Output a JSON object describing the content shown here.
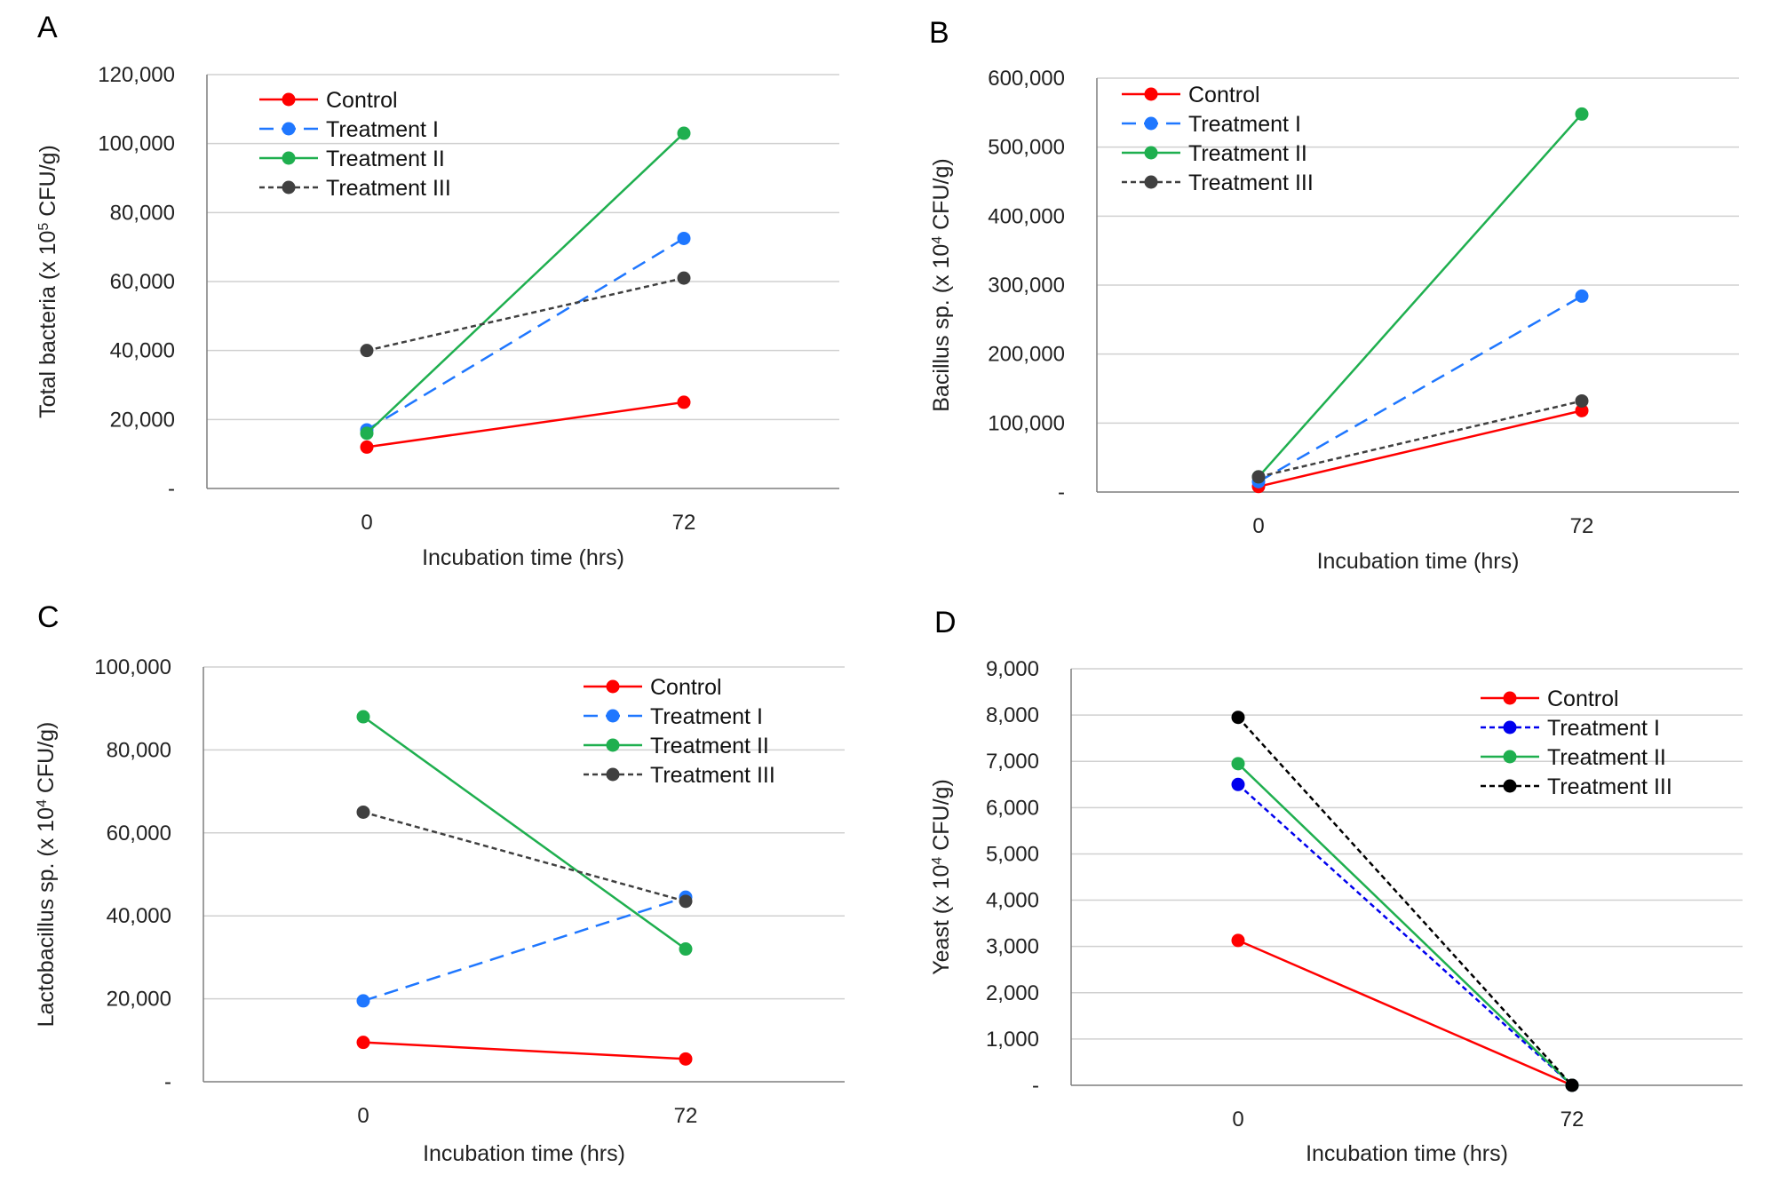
{
  "chart_data": [
    {
      "type": "line",
      "panel": "A",
      "title": "",
      "xlabel": "Incubation time (hrs)",
      "ylabel": {
        "pre": "Total bacteria (x 10",
        "sup": "5",
        "post": " CFU/g)"
      },
      "categories": [
        "0",
        "72"
      ],
      "ylim": [
        0,
        120000
      ],
      "yticks": [
        "-",
        "20,000",
        "40,000",
        "60,000",
        "80,000",
        "100,000",
        "120,000"
      ],
      "grid": true,
      "legend_position": "top-left",
      "series": [
        {
          "name": "Control",
          "values": [
            12000,
            25000
          ],
          "color": "#ff0000",
          "dash": "solid"
        },
        {
          "name": "Treatment I",
          "values": [
            17000,
            72500
          ],
          "color": "#1f77ff",
          "dash": "long-dash"
        },
        {
          "name": "Treatment II",
          "values": [
            16000,
            103000
          ],
          "color": "#1faf4f",
          "dash": "solid"
        },
        {
          "name": "Treatment III",
          "values": [
            40000,
            61000
          ],
          "color": "#404040",
          "dash": "dotted"
        }
      ]
    },
    {
      "type": "line",
      "panel": "B",
      "title": "",
      "xlabel": "Incubation time (hrs)",
      "ylabel": {
        "pre": "Bacillus sp. (x 10",
        "sup": "4",
        "post": " CFU/g)"
      },
      "categories": [
        "0",
        "72"
      ],
      "ylim": [
        0,
        600000
      ],
      "yticks": [
        "-",
        "100,000",
        "200,000",
        "300,000",
        "400,000",
        "500,000",
        "600,000"
      ],
      "grid": true,
      "legend_position": "top-left",
      "series": [
        {
          "name": "Control",
          "values": [
            8000,
            118000
          ],
          "color": "#ff0000",
          "dash": "solid"
        },
        {
          "name": "Treatment I",
          "values": [
            15000,
            284000
          ],
          "color": "#1f77ff",
          "dash": "long-dash"
        },
        {
          "name": "Treatment II",
          "values": [
            22000,
            548000
          ],
          "color": "#1faf4f",
          "dash": "solid"
        },
        {
          "name": "Treatment III",
          "values": [
            22000,
            132000
          ],
          "color": "#404040",
          "dash": "dotted"
        }
      ]
    },
    {
      "type": "line",
      "panel": "C",
      "title": "",
      "xlabel": "Incubation time (hrs)",
      "ylabel": {
        "pre": "Lactobacillus sp. (x 10",
        "sup": "4",
        "post": " CFU/g)"
      },
      "categories": [
        "0",
        "72"
      ],
      "ylim": [
        0,
        100000
      ],
      "yticks": [
        "-",
        "20,000",
        "40,000",
        "60,000",
        "80,000",
        "100,000"
      ],
      "grid": true,
      "legend_position": "top-right",
      "series": [
        {
          "name": "Control",
          "values": [
            9500,
            5500
          ],
          "color": "#ff0000",
          "dash": "solid"
        },
        {
          "name": "Treatment I",
          "values": [
            19500,
            44500
          ],
          "color": "#1f77ff",
          "dash": "long-dash"
        },
        {
          "name": "Treatment II",
          "values": [
            88000,
            32000
          ],
          "color": "#1faf4f",
          "dash": "solid"
        },
        {
          "name": "Treatment III",
          "values": [
            65000,
            43500
          ],
          "color": "#404040",
          "dash": "dotted"
        }
      ]
    },
    {
      "type": "line",
      "panel": "D",
      "title": "",
      "xlabel": "Incubation time (hrs)",
      "ylabel": {
        "pre": "Yeast (x 10",
        "sup": "4",
        "post": " CFU/g)"
      },
      "categories": [
        "0",
        "72"
      ],
      "ylim": [
        0,
        9000
      ],
      "yticks": [
        "-",
        "1,000",
        "2,000",
        "3,000",
        "4,000",
        "5,000",
        "6,000",
        "7,000",
        "8,000",
        "9,000"
      ],
      "grid": true,
      "legend_position": "top-right",
      "series": [
        {
          "name": "Control",
          "values": [
            3130,
            0
          ],
          "color": "#ff0000",
          "dash": "solid"
        },
        {
          "name": "Treatment I",
          "values": [
            6500,
            0
          ],
          "color": "#0000ee",
          "dash": "dotted"
        },
        {
          "name": "Treatment II",
          "values": [
            6950,
            0
          ],
          "color": "#1faf4f",
          "dash": "solid"
        },
        {
          "name": "Treatment III",
          "values": [
            7950,
            0
          ],
          "color": "#000000",
          "dash": "dotted"
        }
      ]
    }
  ]
}
